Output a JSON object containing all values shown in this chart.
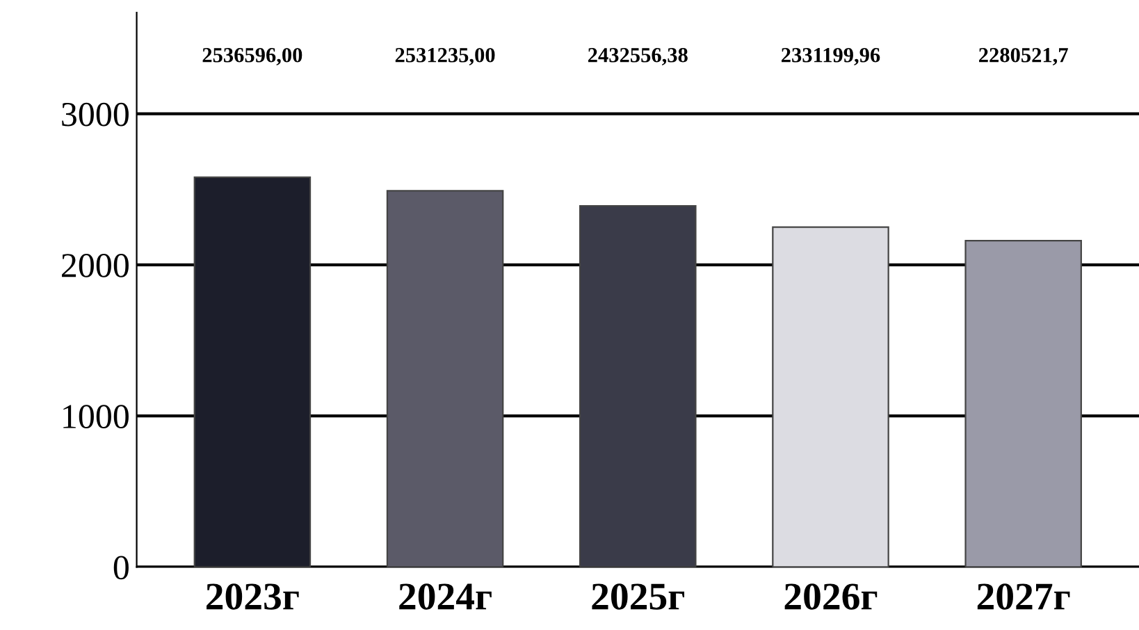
{
  "chart_data": {
    "type": "bar",
    "categories": [
      "2023г",
      "2024г",
      "2025г",
      "2026г",
      "2027г"
    ],
    "values": [
      2580,
      2490,
      2390,
      2250,
      2160
    ],
    "colors": [
      "#1c1e2b",
      "#5b5a68",
      "#3a3b49",
      "#dcdce2",
      "#9a9aa8"
    ],
    "ylim": [
      0,
      3670
    ],
    "yticks": [
      0,
      1000,
      2000,
      3000
    ],
    "grid": "y",
    "annotations": [
      "2536596,00",
      "2531235,00",
      "2432556,38",
      "2331199,96",
      "2280521,7"
    ]
  }
}
